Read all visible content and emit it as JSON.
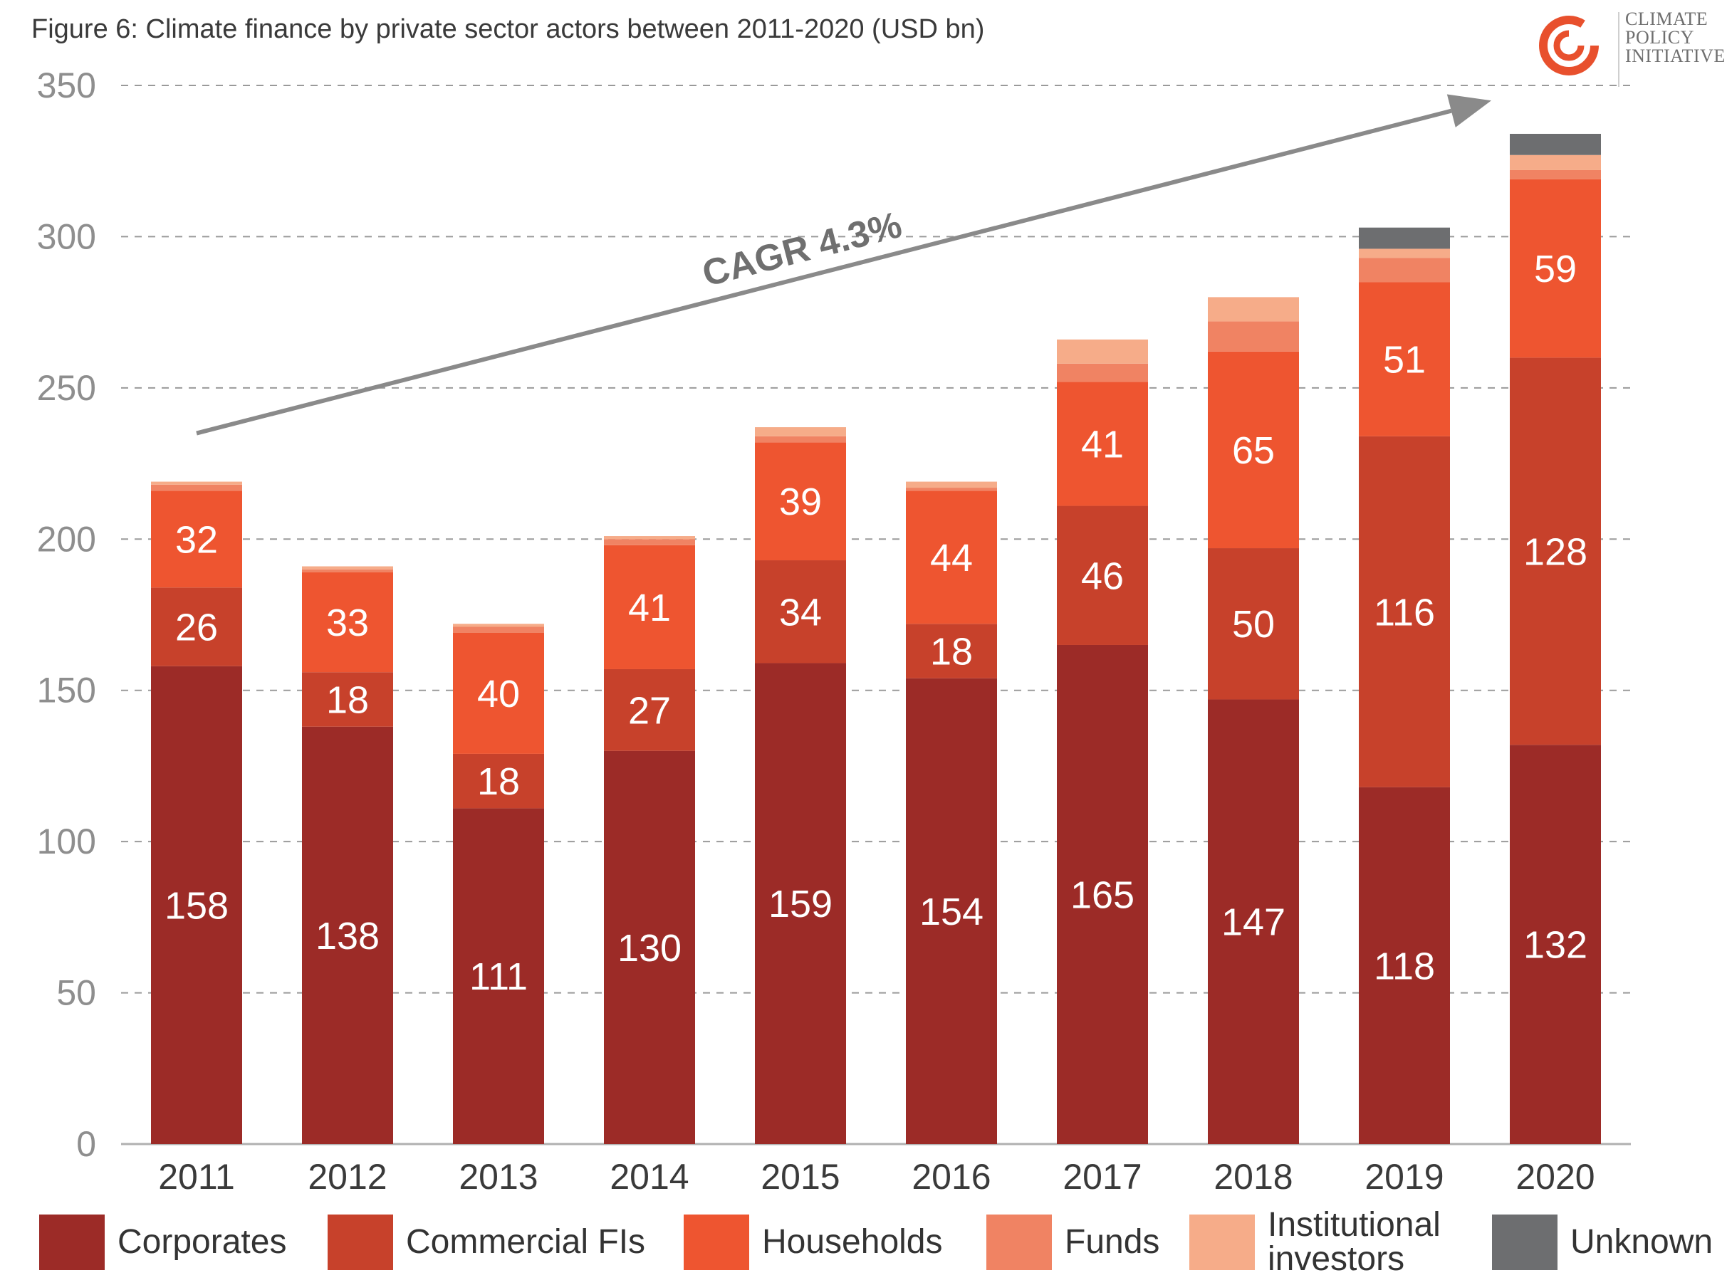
{
  "title": "Figure 6: Climate finance by private sector actors between 2011-2020 (USD bn)",
  "logo": {
    "lines": [
      "CLIMATE",
      "POLICY",
      "INITIATIVE"
    ],
    "icon": "spiral-logo-icon",
    "color": "#e8502d"
  },
  "annotation": "CAGR 4.3%",
  "chart_data": {
    "type": "bar",
    "stacked": true,
    "categories": [
      "2011",
      "2012",
      "2013",
      "2014",
      "2015",
      "2016",
      "2017",
      "2018",
      "2019",
      "2020"
    ],
    "ylim": [
      0,
      350
    ],
    "yticks": [
      0,
      50,
      100,
      150,
      200,
      250,
      300,
      350
    ],
    "grid": true,
    "legend_position": "bottom",
    "series": [
      {
        "name": "Corporates",
        "color": "#9c2b27",
        "values": [
          158,
          138,
          111,
          130,
          159,
          154,
          165,
          147,
          118,
          132
        ],
        "labels": [
          "158",
          "138",
          "111",
          "130",
          "159",
          "154",
          "165",
          "147",
          "118",
          "132"
        ]
      },
      {
        "name": "Commercial FIs",
        "color": "#c7412b",
        "values": [
          26,
          18,
          18,
          27,
          34,
          18,
          46,
          50,
          116,
          128
        ],
        "labels": [
          "26",
          "18",
          "18",
          "27",
          "34",
          "18",
          "46",
          "50",
          "116",
          "128"
        ]
      },
      {
        "name": "Households",
        "color": "#ee5530",
        "values": [
          32,
          33,
          40,
          41,
          39,
          44,
          41,
          65,
          51,
          59
        ],
        "labels": [
          "32",
          "33",
          "40",
          "41",
          "39",
          "44",
          "41",
          "65",
          "51",
          "59"
        ]
      },
      {
        "name": "Funds",
        "color": "#f08363",
        "values": [
          2,
          1,
          2,
          2,
          2,
          1,
          6,
          10,
          8,
          3
        ],
        "labels": []
      },
      {
        "name": "Institutional investors",
        "color": "#f6ac89",
        "values": [
          1,
          1,
          1,
          1,
          3,
          2,
          8,
          8,
          3,
          5
        ],
        "labels": []
      },
      {
        "name": "Unknown",
        "color": "#6d6e70",
        "values": [
          0,
          0,
          0,
          0,
          0,
          0,
          0,
          0,
          7,
          7
        ],
        "labels": []
      }
    ],
    "legend_labels": [
      "Corporates",
      "Commercial FIs",
      "Households",
      "Funds",
      "Institutional\ninvestors",
      "Unknown"
    ],
    "trend_arrow": {
      "label": "CAGR 4.3%",
      "from": {
        "x": "2011",
        "y": 235
      },
      "to": {
        "x": "2020",
        "y": 345
      },
      "color": "#8a8a8a"
    }
  }
}
